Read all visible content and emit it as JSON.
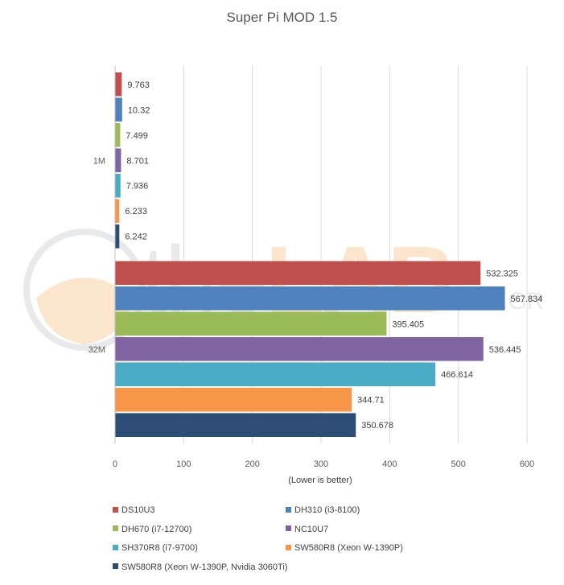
{
  "chart_data": {
    "type": "bar",
    "orientation": "horizontal",
    "title": "Super Pi MOD 1.5",
    "xlabel": "(Lower  is better)",
    "ylabel": "",
    "xlim": [
      0,
      600
    ],
    "xticks": [
      0,
      100,
      200,
      300,
      400,
      500,
      600
    ],
    "categories": [
      "1M",
      "32M"
    ],
    "grid": true,
    "legend_position": "bottom",
    "series": [
      {
        "name": "DS10U3",
        "color": "#c0504d",
        "values": [
          9.763,
          532.325
        ],
        "labels": [
          "9.763",
          "532.325"
        ]
      },
      {
        "name": "DH310 (i3-8100)",
        "color": "#4f81bd",
        "values": [
          10.32,
          567.834
        ],
        "labels": [
          "10.32",
          "567.834"
        ]
      },
      {
        "name": "DH670 (i7-12700)",
        "color": "#9bbb59",
        "values": [
          7.499,
          395.405
        ],
        "labels": [
          "7.499",
          "395.405"
        ]
      },
      {
        "name": "NC10U7",
        "color": "#8064a2",
        "values": [
          8.701,
          536.445
        ],
        "labels": [
          "8.701",
          "536.445"
        ]
      },
      {
        "name": "SH370R8 (i7-9700)",
        "color": "#4bacc6",
        "values": [
          7.936,
          466.614
        ],
        "labels": [
          "7.936",
          "466.614"
        ]
      },
      {
        "name": "SW580R8 (Xeon W-1390P)",
        "color": "#f79646",
        "values": [
          6.233,
          344.71
        ],
        "labels": [
          "6.233",
          "344.71"
        ]
      },
      {
        "name": "SW580R8 (Xeon W-1390P, Nvidia 3060Ti)",
        "color": "#2c4d75",
        "values": [
          6.242,
          350.678
        ],
        "labels": [
          "6.242",
          "350.678"
        ]
      }
    ]
  },
  "watermark": {
    "part1": "the",
    "part2": "LAB",
    "part3": ".GR"
  }
}
